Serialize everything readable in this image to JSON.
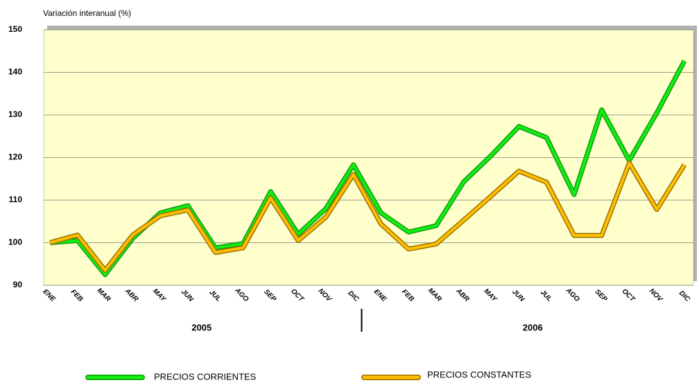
{
  "chart_data": {
    "type": "line",
    "y_label": "Variación interanual (%)",
    "categories": [
      "ENE",
      "FEB",
      "MAR",
      "ABR",
      "MAY",
      "JUN",
      "JUL",
      "AGO",
      "SEP",
      "OCT",
      "NOV",
      "DIC",
      "ENE",
      "FEB",
      "MAR",
      "ABR",
      "MAY",
      "JUN",
      "JUL",
      "AGO",
      "SEP",
      "OCT",
      "NOV",
      "DIC"
    ],
    "x_groups": [
      "2005",
      "2006"
    ],
    "series": [
      {
        "name": "PRECIOS CORRIENTES",
        "color": "#11ee11",
        "outline_color": "#119911",
        "values": [
          100,
          100.5,
          92.5,
          101,
          107,
          108.7,
          98.8,
          99.8,
          112,
          102,
          108,
          118.3,
          107,
          102.5,
          104,
          114.3,
          120.5,
          127.3,
          124.7,
          111.3,
          131.2,
          119.3,
          130.5,
          142.7
        ]
      },
      {
        "name": "PRECIOS CONSTANTES",
        "color": "#ffc000",
        "outline_color": "#9a6e00",
        "values": [
          100,
          101.8,
          93.5,
          101.8,
          106.3,
          107.7,
          97.7,
          98.8,
          110.5,
          100.5,
          106,
          116,
          104.4,
          98.5,
          99.7,
          105.3,
          111,
          116.8,
          114.2,
          101.7,
          101.7,
          118.7,
          107.8,
          118.3
        ]
      }
    ],
    "ylim": [
      90,
      150
    ],
    "yticks": [
      90,
      100,
      110,
      120,
      130,
      140,
      150
    ],
    "grid": true,
    "plot_background": "#ffffcc"
  }
}
